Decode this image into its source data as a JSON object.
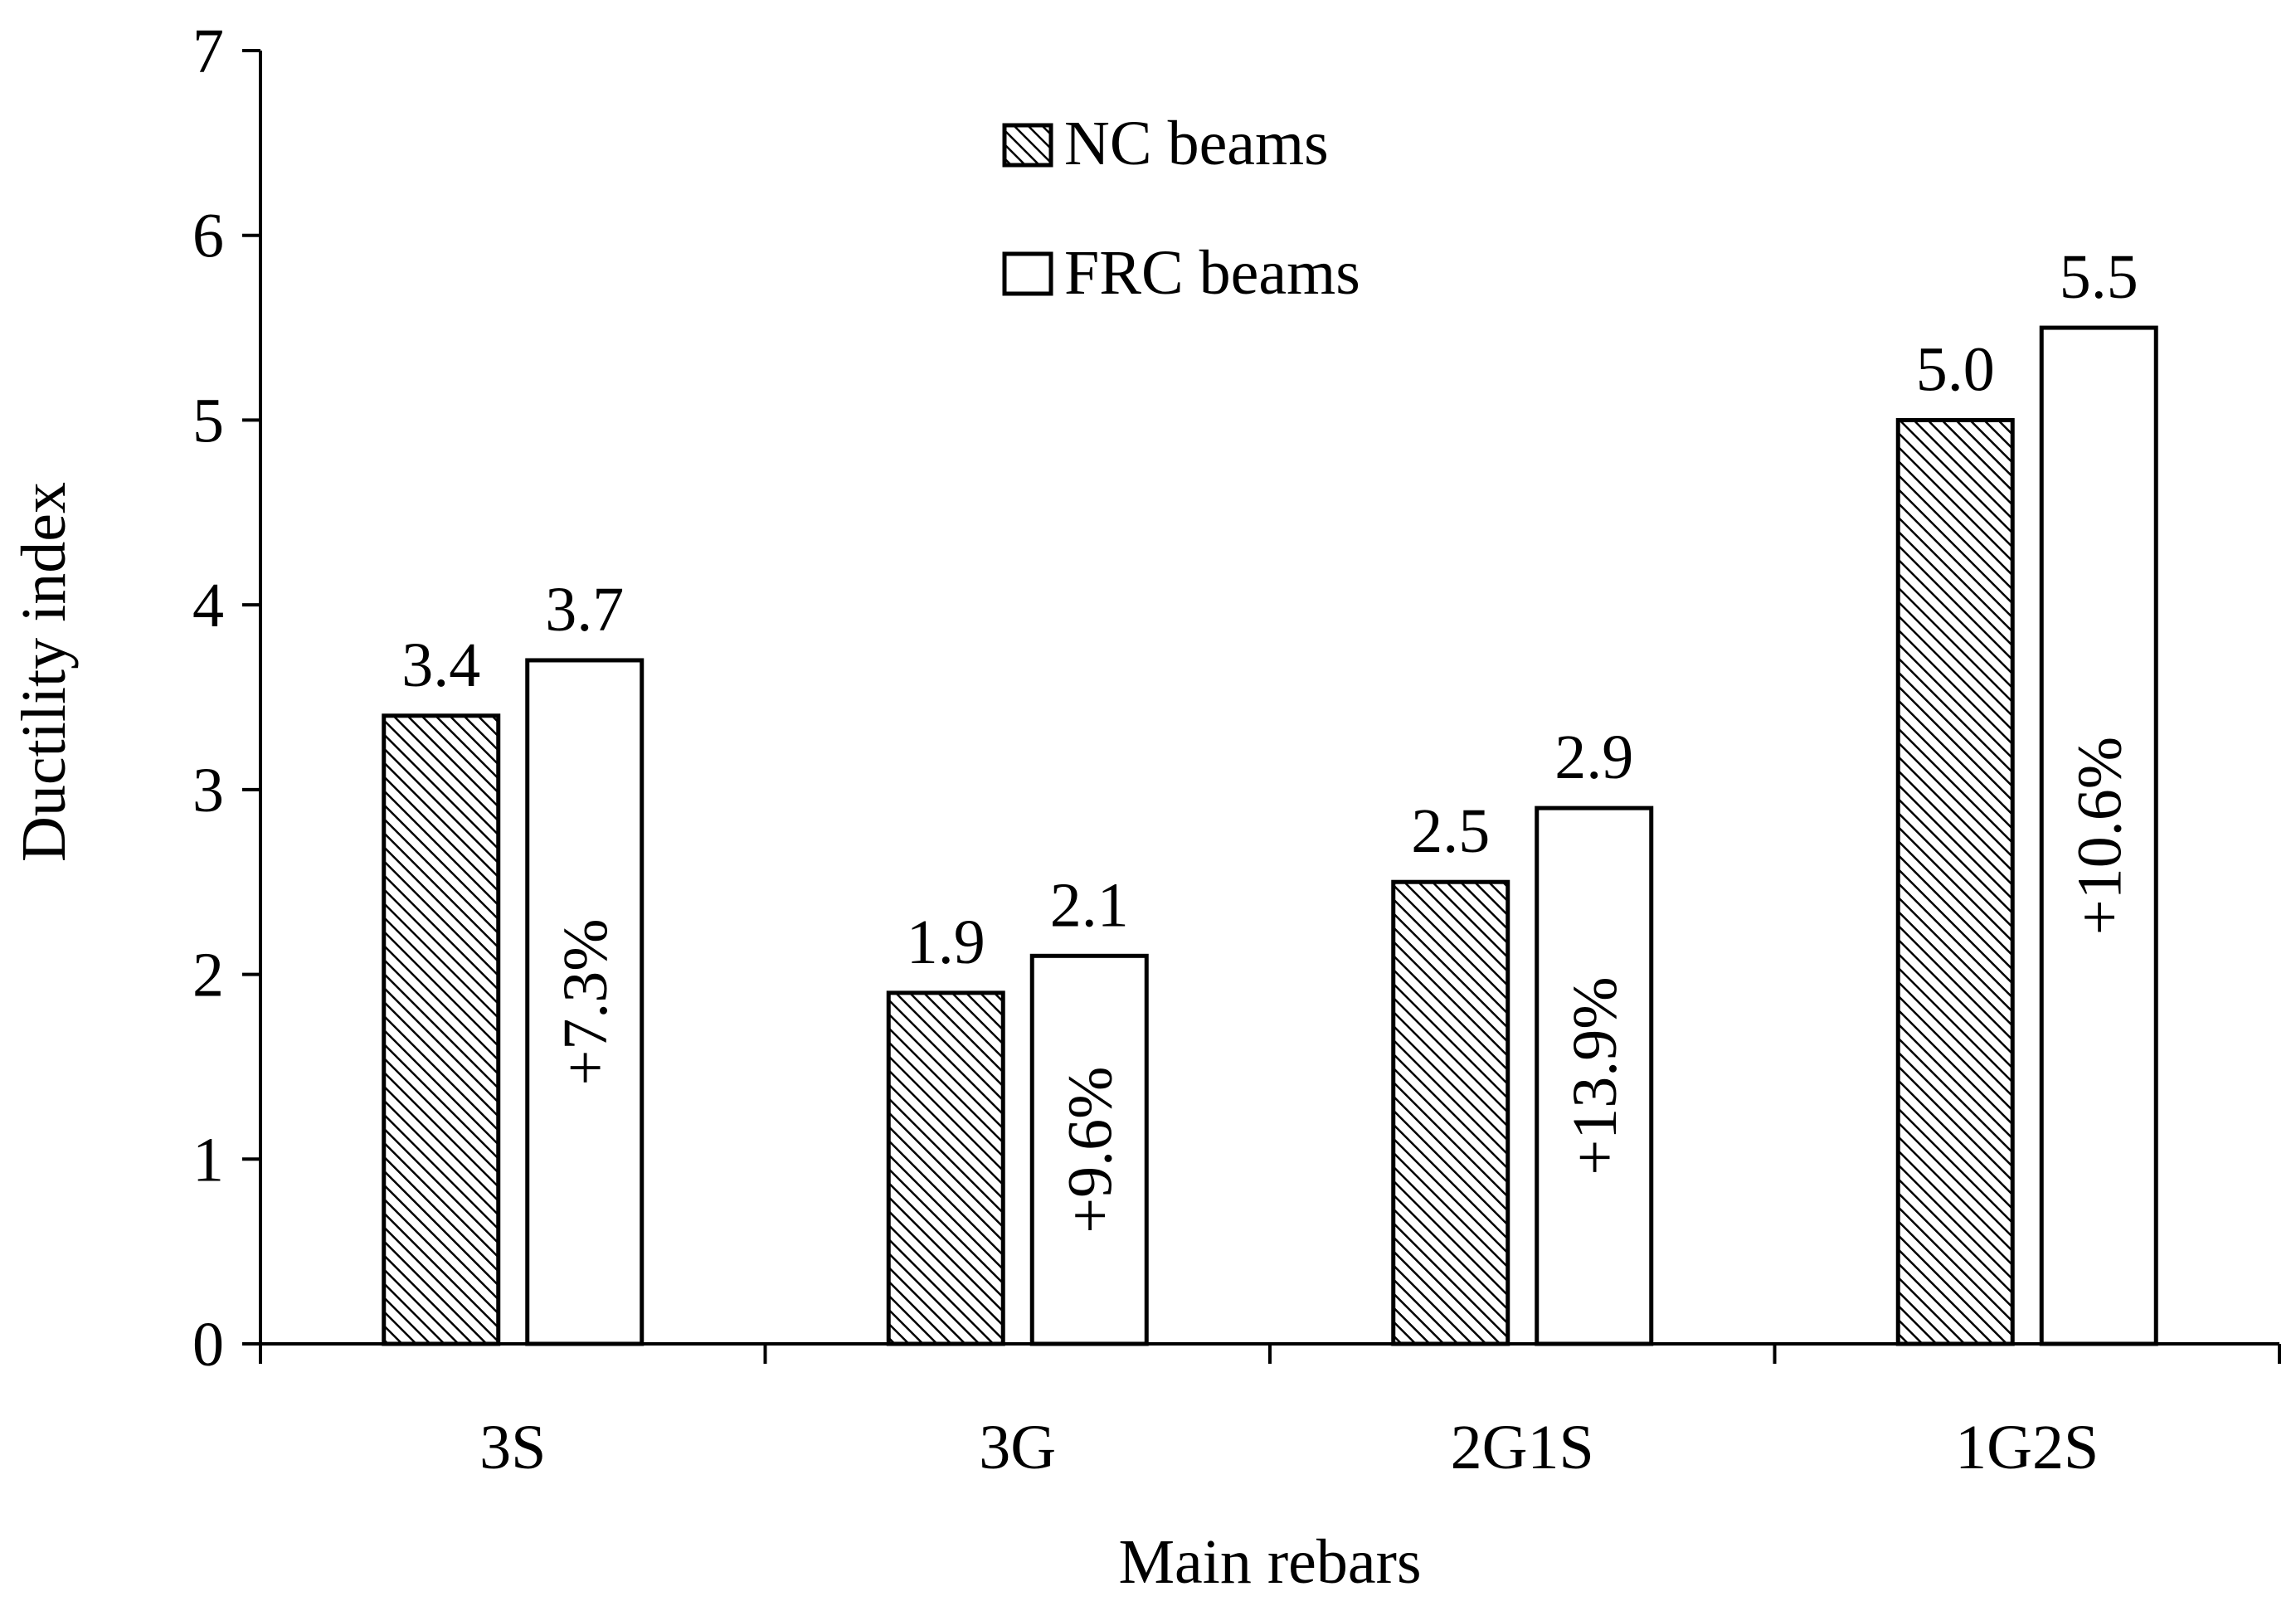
{
  "chart_data": {
    "type": "bar",
    "title": "",
    "xlabel": "Main rebars",
    "ylabel": "Ductility index",
    "ylim": [
      0,
      7
    ],
    "yticks": [
      "0",
      "1",
      "2",
      "3",
      "4",
      "5",
      "6",
      "7"
    ],
    "grid": false,
    "legend_position": "top-center",
    "categories": [
      "3S",
      "3G",
      "2G1S",
      "1G2S"
    ],
    "series": [
      {
        "name": "NC beams",
        "fill": "hatched",
        "values": [
          3.4,
          1.9,
          2.5,
          5.0
        ],
        "labels": [
          "3.4",
          "1.9",
          "2.5",
          "5.0"
        ]
      },
      {
        "name": "FRC beams",
        "fill": "white",
        "values": [
          3.7,
          2.1,
          2.9,
          5.5
        ],
        "labels": [
          "3.7",
          "2.1",
          "2.9",
          "5.5"
        ]
      }
    ],
    "annotations": [
      "+7.3%",
      "+9.6%",
      "+13.9%",
      "+10.6%"
    ],
    "colors": {
      "stroke": "#000000",
      "hatch": "#000000",
      "background": "#ffffff"
    }
  }
}
